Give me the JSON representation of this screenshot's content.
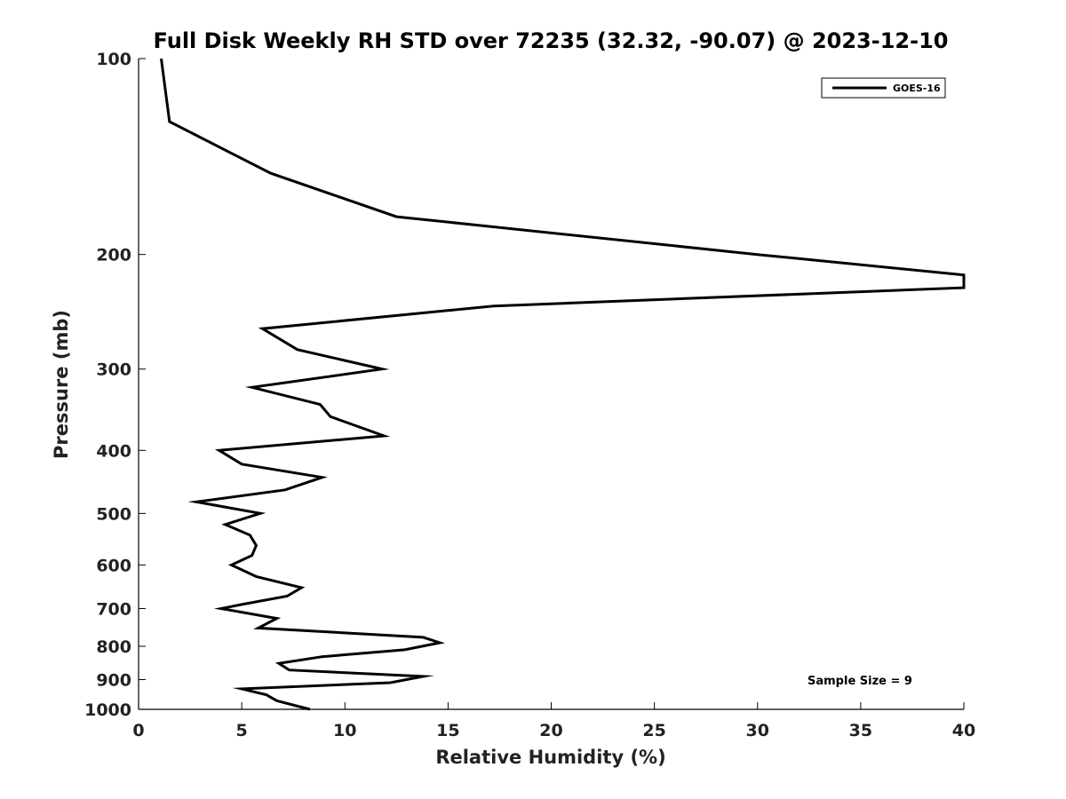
{
  "chart_data": {
    "type": "line",
    "title": "Full Disk Weekly RH STD over 72235 (32.32, -90.07) @ 2023-12-10",
    "xlabel": "Relative Humidity (%)",
    "ylabel": "Pressure (mb)",
    "xlim": [
      0,
      40
    ],
    "ylim": [
      100,
      1000
    ],
    "y_scale": "log",
    "y_reversed": true,
    "grid": false,
    "legend_position": "top-right",
    "x_ticks": [
      "0",
      "5",
      "10",
      "15",
      "20",
      "25",
      "30",
      "35",
      "40"
    ],
    "y_ticks": [
      "100",
      "200",
      "300",
      "400",
      "500",
      "600",
      "700",
      "800",
      "900",
      "1000"
    ],
    "annotation": "Sample Size = 9",
    "series": [
      {
        "name": "GOES-16",
        "color": "#000000",
        "points": [
          [
            1.1,
            100
          ],
          [
            1.5,
            125
          ],
          [
            6.4,
            150
          ],
          [
            12.5,
            175
          ],
          [
            30.0,
            200
          ],
          [
            40.0,
            215
          ],
          [
            40.0,
            225
          ],
          [
            17.2,
            240
          ],
          [
            6.0,
            260
          ],
          [
            7.7,
            280
          ],
          [
            11.8,
            300
          ],
          [
            5.5,
            320
          ],
          [
            8.8,
            340
          ],
          [
            9.3,
            355
          ],
          [
            11.9,
            380
          ],
          [
            3.9,
            400
          ],
          [
            5.0,
            420
          ],
          [
            8.9,
            440
          ],
          [
            7.1,
            460
          ],
          [
            2.8,
            480
          ],
          [
            5.9,
            500
          ],
          [
            4.2,
            520
          ],
          [
            5.4,
            540
          ],
          [
            5.7,
            560
          ],
          [
            5.5,
            580
          ],
          [
            4.5,
            600
          ],
          [
            5.7,
            625
          ],
          [
            7.9,
            650
          ],
          [
            7.2,
            670
          ],
          [
            5.0,
            690
          ],
          [
            4.0,
            700
          ],
          [
            6.7,
            725
          ],
          [
            5.8,
            750
          ],
          [
            13.8,
            775
          ],
          [
            14.6,
            790
          ],
          [
            12.9,
            810
          ],
          [
            8.9,
            830
          ],
          [
            6.8,
            850
          ],
          [
            7.3,
            870
          ],
          [
            13.8,
            890
          ],
          [
            12.2,
            910
          ],
          [
            5.0,
            930
          ],
          [
            6.2,
            950
          ],
          [
            6.7,
            970
          ],
          [
            8.3,
            1000
          ]
        ]
      }
    ]
  }
}
